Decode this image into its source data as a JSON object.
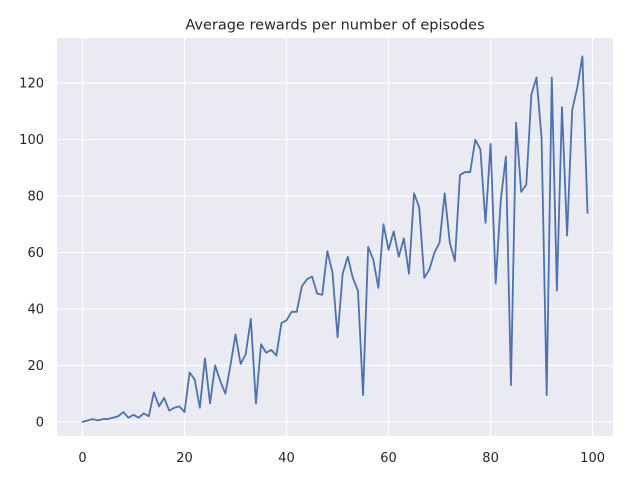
{
  "chart_data": {
    "type": "line",
    "title": "Average rewards per number of episodes",
    "xlabel": "",
    "ylabel": "",
    "xlim": [
      -5,
      104
    ],
    "ylim": [
      -5,
      136
    ],
    "x_ticks": [
      0,
      20,
      40,
      60,
      80,
      100
    ],
    "y_ticks": [
      0,
      20,
      40,
      60,
      80,
      100,
      120
    ],
    "grid": true,
    "legend": "none",
    "colors": {
      "background": "#eaeaf2",
      "grid": "#ffffff",
      "line": "#4c72b0",
      "text": "#262626"
    },
    "series": [
      {
        "values": [
          0,
          0.5,
          1,
          0.5,
          1,
          1,
          1.5,
          2,
          3.5,
          1.5,
          2.5,
          1.5,
          3,
          2,
          10.5,
          5.5,
          8.5,
          4,
          5,
          5.5,
          3.5,
          17.5,
          15,
          5,
          22.5,
          6.5,
          20,
          14.5,
          10,
          20,
          31,
          20.5,
          24,
          36.5,
          6.5,
          27.5,
          24.5,
          25.5,
          23.5,
          35,
          36,
          39,
          39,
          48,
          50.5,
          51.5,
          45.5,
          45,
          60.5,
          53,
          30,
          52.5,
          58.5,
          51,
          46.5,
          9.5,
          62,
          57.5,
          47.5,
          70,
          61,
          67.5,
          58.5,
          65,
          52.5,
          81,
          76,
          51,
          54,
          60,
          63.5,
          81,
          63.5,
          57,
          87.5,
          88.5,
          88.5,
          100,
          96.5,
          70.5,
          98.5,
          49,
          78.5,
          94,
          13,
          106,
          81.5,
          84,
          116,
          122,
          100.5,
          9.5,
          122,
          46.5,
          111.5,
          66,
          110.5,
          118.5,
          129.5,
          74
        ]
      }
    ]
  }
}
